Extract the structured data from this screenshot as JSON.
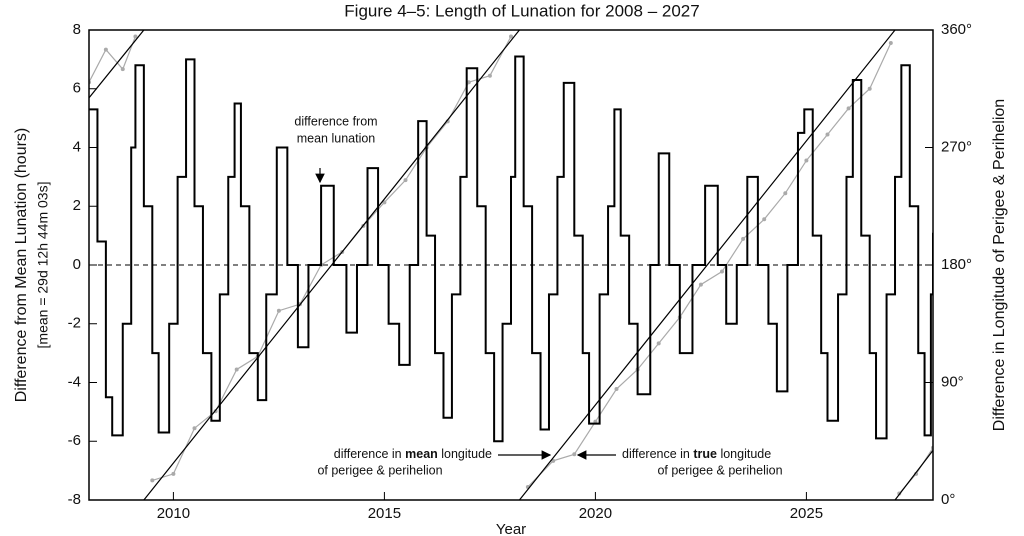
{
  "chart_data": {
    "type": "line",
    "title": "Figure 4–5:  Length of Lunation for 2008 – 2027",
    "x_label": "Year",
    "y_label": [
      "Difference from Mean Lunation (hours)",
      "[mean = 29d 12h 44m 03s]"
    ],
    "y2_label": "Difference in Longitude of Perigee & Perihelion",
    "xlim": [
      2008,
      2028
    ],
    "xticks": [
      2010,
      2015,
      2020,
      2025
    ],
    "ylim": [
      -8,
      8
    ],
    "yticks": [
      -8,
      -6,
      -4,
      -2,
      0,
      2,
      4,
      6,
      8
    ],
    "y2lim": [
      0,
      360
    ],
    "y2ticks": [
      {
        "value": 0,
        "label": "0°"
      },
      {
        "value": 90,
        "label": "90°"
      },
      {
        "value": 180,
        "label": "180°"
      },
      {
        "value": 270,
        "label": "270°"
      },
      {
        "value": 360,
        "label": "360°"
      }
    ],
    "hline": 0,
    "annotations": {
      "lunation": [
        "difference from",
        "mean lunation"
      ],
      "mean": {
        "before": "difference in ",
        "bold": "mean",
        "after": " longitude",
        "line2": "of perigee & perihelion"
      },
      "true": {
        "before": "difference in ",
        "bold": "true",
        "after": " longitude",
        "line2": "of perigee & perihelion"
      }
    },
    "series": [
      {
        "color": "#aaaaaa",
        "axis": "y2",
        "markers": true,
        "x": [
          2008.0,
          2008.4,
          2008.8,
          2009.1,
          2009.3,
          2009.5,
          2010.0,
          2010.5,
          2011.0,
          2011.5,
          2012.0,
          2012.5,
          2013.0,
          2013.5,
          2014.0,
          2014.5,
          2015.0,
          2015.5,
          2016.0,
          2016.5,
          2017.0,
          2017.5,
          2018.0,
          2018.2,
          2018.4,
          2019.0,
          2019.5,
          2020.0,
          2020.5,
          2021.0,
          2021.5,
          2022.0,
          2022.5,
          2023.0,
          2023.5,
          2024.0,
          2024.5,
          2025.0,
          2025.5,
          2026.0,
          2026.5,
          2027.0,
          2027.1,
          2027.2,
          2027.6,
          2028.0
        ],
        "values": [
          320,
          345,
          330,
          355,
          null,
          15,
          20,
          55,
          68,
          100,
          110,
          145,
          150,
          180,
          190,
          210,
          228,
          245,
          270,
          290,
          320,
          325,
          355,
          null,
          10,
          30,
          35,
          60,
          85,
          100,
          120,
          140,
          165,
          175,
          200,
          215,
          235,
          260,
          280,
          300,
          315,
          350,
          null,
          5,
          20,
          40
        ]
      },
      {
        "color": "#000000",
        "axis": "y2",
        "x": [
          2008,
          2009.3,
          2009.3,
          2009.3,
          2018.2,
          2018.2,
          2018.2,
          2027.1,
          2027.1,
          2027.1,
          2028
        ],
        "values": [
          308,
          360,
          null,
          0,
          360,
          null,
          0,
          360,
          null,
          0,
          38
        ]
      },
      {
        "color": "#000000",
        "step": true,
        "x": [
          2008.0,
          2008.2,
          2008.4,
          2008.55,
          2008.8,
          2009.0,
          2009.1,
          2009.3,
          2009.5,
          2009.65,
          2009.9,
          2010.1,
          2010.3,
          2010.5,
          2010.7,
          2010.9,
          2011.1,
          2011.3,
          2011.45,
          2011.6,
          2011.8,
          2012.0,
          2012.2,
          2012.45,
          2012.7,
          2012.95,
          2013.2,
          2013.5,
          2013.8,
          2014.1,
          2014.35,
          2014.6,
          2014.85,
          2015.1,
          2015.35,
          2015.6,
          2015.8,
          2016.0,
          2016.2,
          2016.4,
          2016.6,
          2016.8,
          2016.95,
          2017.2,
          2017.4,
          2017.6,
          2017.8,
          2018.0,
          2018.1,
          2018.3,
          2018.5,
          2018.7,
          2018.9,
          2019.1,
          2019.25,
          2019.5,
          2019.7,
          2019.85,
          2020.1,
          2020.3,
          2020.45,
          2020.6,
          2020.8,
          2021.0,
          2021.3,
          2021.5,
          2021.75,
          2022.0,
          2022.3,
          2022.6,
          2022.9,
          2023.1,
          2023.35,
          2023.6,
          2023.85,
          2024.1,
          2024.3,
          2024.55,
          2024.8,
          2024.95,
          2025.15,
          2025.35,
          2025.5,
          2025.75,
          2025.95,
          2026.1,
          2026.3,
          2026.5,
          2026.65,
          2026.9,
          2027.1,
          2027.25,
          2027.45,
          2027.65,
          2027.8,
          2027.95,
          2028.0
        ],
        "values": [
          5.3,
          0.8,
          -4.5,
          -5.8,
          -2,
          4,
          6.8,
          2,
          -3,
          -5.7,
          -2,
          3,
          7.0,
          2,
          -3,
          -5.3,
          -1,
          3,
          5.5,
          2,
          -3,
          -4.6,
          -1,
          4.0,
          0,
          -2.8,
          0,
          2.7,
          0,
          -2.3,
          0,
          3.3,
          0,
          -2,
          -3.4,
          0,
          4.9,
          1,
          -3,
          -5.2,
          -1,
          3,
          6.7,
          2,
          -3,
          -6,
          -2,
          3,
          7.1,
          2,
          -3,
          -5.6,
          -1,
          3,
          6.2,
          1,
          -3,
          -5.4,
          -1,
          2,
          5.3,
          1,
          -2,
          -4.4,
          0,
          3.8,
          0,
          -3.0,
          0,
          2.7,
          0,
          -2.0,
          0,
          3.0,
          0,
          -2,
          -4.3,
          0,
          4.5,
          5.3,
          1,
          -3,
          -5.3,
          -1,
          3,
          6.3,
          1,
          -3,
          -5.9,
          -1,
          3,
          6.8,
          2,
          -3,
          -5.8,
          -1,
          1.1
        ]
      }
    ]
  }
}
